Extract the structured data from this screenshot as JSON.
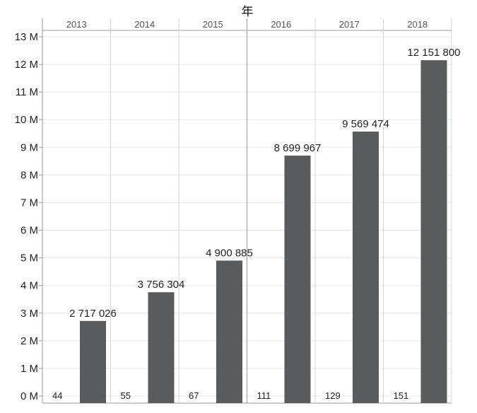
{
  "chart_data": {
    "type": "bar",
    "title": "年",
    "categories": [
      "2013",
      "2014",
      "2015",
      "2016",
      "2017",
      "2018"
    ],
    "series": [
      {
        "values": [
          2717026,
          3756304,
          4900885,
          8699967,
          9569474,
          12151800
        ]
      }
    ],
    "value_labels": [
      "2 717 026",
      "3 756 304",
      "4 900 885",
      "8 699 967",
      "9 569 474",
      "12 151 800"
    ],
    "counts": [
      "44",
      "55",
      "67",
      "111",
      "129",
      "151"
    ],
    "y_ticks": [
      {
        "value": 0,
        "label": "0 M"
      },
      {
        "value": 1000000,
        "label": "1 M"
      },
      {
        "value": 2000000,
        "label": "2 M"
      },
      {
        "value": 3000000,
        "label": "3 M"
      },
      {
        "value": 4000000,
        "label": "4 M"
      },
      {
        "value": 5000000,
        "label": "5 M"
      },
      {
        "value": 6000000,
        "label": "6 M"
      },
      {
        "value": 7000000,
        "label": "7 M"
      },
      {
        "value": 8000000,
        "label": "8 M"
      },
      {
        "value": 9000000,
        "label": "9 M"
      },
      {
        "value": 10000000,
        "label": "10 M"
      },
      {
        "value": 11000000,
        "label": "11 M"
      },
      {
        "value": 12000000,
        "label": "12 M"
      },
      {
        "value": 13000000,
        "label": "13 M"
      }
    ],
    "ylim": [
      0,
      13000000
    ],
    "grid": true,
    "colors": {
      "bar": "#5a5b5c",
      "grid": "#e6e6e6",
      "divider": "#d4d4d4",
      "axis": "#9a9a9a"
    }
  }
}
